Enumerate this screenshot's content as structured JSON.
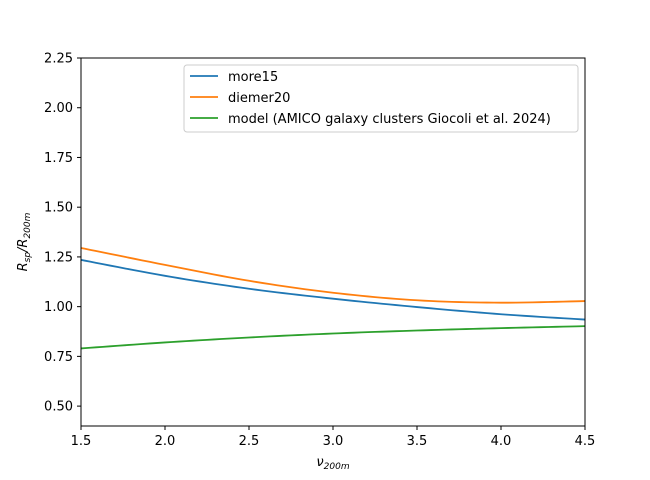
{
  "chart_data": {
    "type": "line",
    "title": "",
    "xlabel": "ν",
    "xlabel_sub": "200m",
    "ylabel_main": "R",
    "ylabel_sub1": "sp",
    "ylabel_sep": "/R",
    "ylabel_sub2": "200m",
    "xlim": [
      1.5,
      4.5
    ],
    "ylim": [
      0.4,
      2.25
    ],
    "grid": false,
    "legend_position": "upper-center",
    "x_ticks": [
      1.5,
      2.0,
      2.5,
      3.0,
      3.5,
      4.0,
      4.5
    ],
    "x_tick_labels": [
      "1.5",
      "2.0",
      "2.5",
      "3.0",
      "3.5",
      "4.0",
      "4.5"
    ],
    "y_ticks": [
      0.5,
      0.75,
      1.0,
      1.25,
      1.5,
      1.75,
      2.0,
      2.25
    ],
    "y_tick_labels": [
      "0.50",
      "0.75",
      "1.00",
      "1.25",
      "1.50",
      "1.75",
      "2.00",
      "2.25"
    ],
    "x": [
      1.5,
      2.0,
      2.5,
      3.0,
      3.5,
      4.0,
      4.5
    ],
    "series": [
      {
        "name": "more15",
        "color": "#1f77b4",
        "values": [
          1.235,
          1.155,
          1.09,
          1.04,
          0.998,
          0.962,
          0.935
        ]
      },
      {
        "name": "diemer20",
        "color": "#ff7f0e",
        "values": [
          1.295,
          1.21,
          1.13,
          1.07,
          1.032,
          1.02,
          1.028
        ]
      },
      {
        "name": "model (AMICO galaxy clusters Giocoli et al. 2024)",
        "color": "#2ca02c",
        "values": [
          0.79,
          0.82,
          0.845,
          0.865,
          0.88,
          0.892,
          0.902
        ]
      }
    ]
  }
}
